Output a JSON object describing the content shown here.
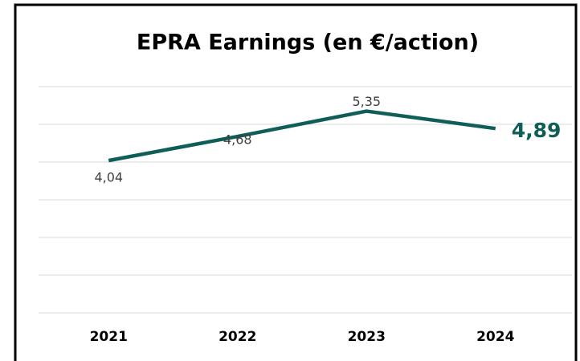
{
  "chart_data": {
    "type": "line",
    "title": "EPRA Earnings (en €/action)",
    "categories": [
      "2021",
      "2022",
      "2023",
      "2024"
    ],
    "series": [
      {
        "name": "EPRA Earnings",
        "color": "#0f5f58",
        "values": [
          4.04,
          4.68,
          5.35,
          4.89
        ],
        "value_labels": [
          "4,04",
          "4,68",
          "5,35",
          "4,89"
        ]
      }
    ],
    "ylim": [
      0,
      6
    ],
    "yticks": [
      0,
      1,
      2,
      3,
      4,
      5,
      6
    ],
    "grid": true
  }
}
